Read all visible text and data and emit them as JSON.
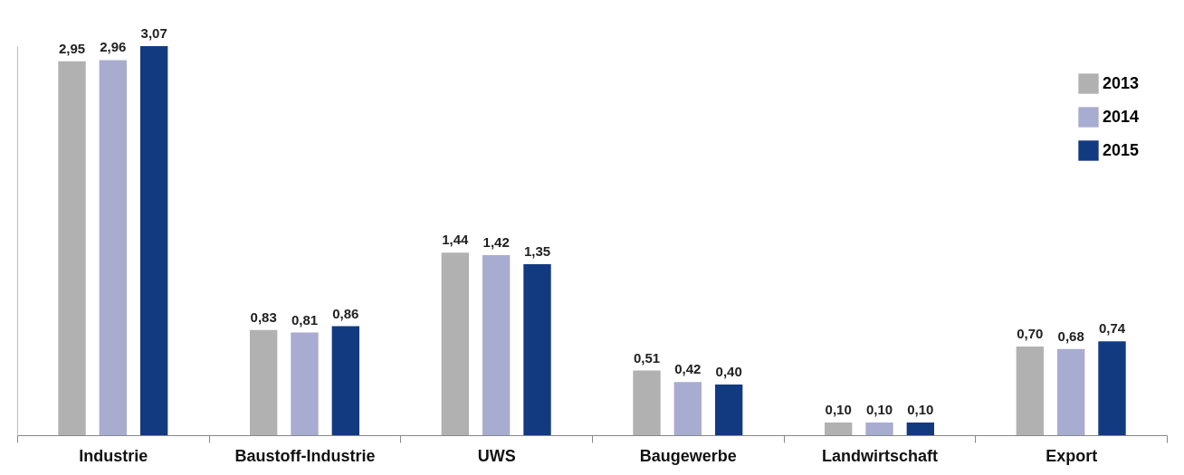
{
  "chart_data": {
    "type": "bar",
    "categories": [
      "Industrie",
      "Baustoff-Industrie",
      "UWS",
      "Baugewerbe",
      "Landwirtschaft",
      "Export"
    ],
    "series": [
      {
        "name": "2013",
        "color": "#b1b1b1",
        "values": [
          2.95,
          0.83,
          1.44,
          0.51,
          0.1,
          0.7
        ],
        "value_labels": [
          "2,95",
          "0,83",
          "1,44",
          "0,51",
          "0,10",
          "0,70"
        ]
      },
      {
        "name": "2014",
        "color": "#a8acd0",
        "values": [
          2.96,
          0.81,
          1.42,
          0.42,
          0.1,
          0.68
        ],
        "value_labels": [
          "2,96",
          "0,81",
          "1,42",
          "0,42",
          "0,10",
          "0,68"
        ]
      },
      {
        "name": "2015",
        "color": "#123a80",
        "values": [
          3.07,
          0.86,
          1.35,
          0.4,
          0.1,
          0.74
        ],
        "value_labels": [
          "3,07",
          "0,86",
          "1,35",
          "0,40",
          "0,10",
          "0,74"
        ]
      }
    ],
    "legend": "top right",
    "grid": false
  }
}
